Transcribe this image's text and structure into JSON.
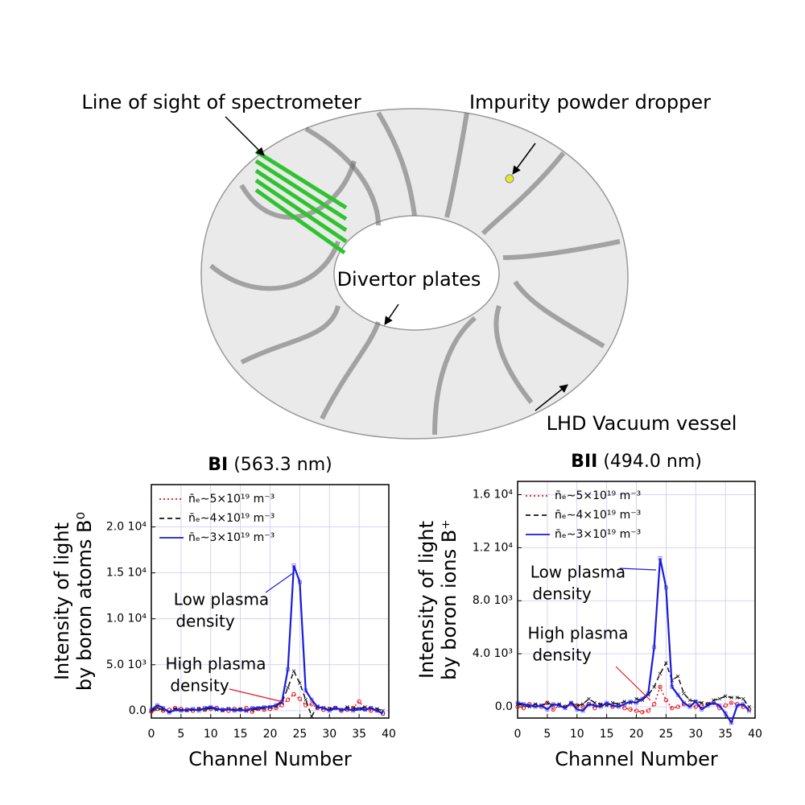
{
  "diagram": {
    "labels": [
      "Line of sight of spectrometer",
      "Impurity powder dropper",
      "Divertor plates",
      "LHD Vacuum vessel"
    ]
  },
  "chart_data": [
    {
      "type": "line",
      "title": {
        "bold": "BI",
        "text": "(563.3 nm)"
      },
      "y_label": [
        "Intensity of light",
        "by boron atoms B⁰"
      ],
      "x_label": "Channel Number",
      "x": [
        0,
        1,
        2,
        3,
        4,
        5,
        6,
        7,
        8,
        9,
        10,
        11,
        12,
        13,
        14,
        15,
        16,
        17,
        18,
        19,
        20,
        21,
        22,
        23,
        24,
        25,
        26,
        27,
        28,
        29,
        30,
        31,
        32,
        33,
        34,
        35,
        36,
        37,
        38,
        39
      ],
      "xlim": [
        0,
        40
      ],
      "xticks": [
        0,
        5,
        10,
        15,
        20,
        25,
        30,
        35,
        40
      ],
      "ylim": [
        -800,
        24600
      ],
      "yticks": [
        {
          "value": 0,
          "label": "0.0"
        },
        {
          "value": 5000,
          "label": "5.0 10³"
        },
        {
          "value": 10000,
          "label": "1.0 10⁴"
        },
        {
          "value": 15000,
          "label": "1.5 10⁴"
        },
        {
          "value": 20000,
          "label": "2.0 10⁴"
        }
      ],
      "grid": true,
      "legend": "upper left",
      "series": [
        {
          "name": "n̄ₑ∼5×10¹⁹ m⁻³",
          "color": "#e8141b",
          "marker": "circle",
          "dash": "dot",
          "values": [
            -100,
            200,
            0,
            100,
            300,
            200,
            100,
            0,
            200,
            100,
            200,
            300,
            100,
            0,
            200,
            100,
            300,
            -100,
            200,
            100,
            200,
            300,
            600,
            1200,
            1800,
            1300,
            600,
            700,
            300,
            100,
            200,
            300,
            0,
            100,
            300,
            1000,
            200,
            0,
            100,
            -300
          ]
        },
        {
          "name": "n̄ₑ∼4×10¹⁹ m⁻³",
          "color": "#111111",
          "marker": "x",
          "dash": "dash",
          "values": [
            0,
            300,
            100,
            -100,
            200,
            100,
            0,
            100,
            200,
            100,
            300,
            100,
            0,
            200,
            100,
            200,
            0,
            100,
            200,
            300,
            400,
            500,
            900,
            2500,
            4300,
            3000,
            1200,
            -600,
            500,
            300,
            200,
            300,
            100,
            400,
            300,
            200,
            400,
            300,
            200,
            0
          ]
        },
        {
          "name": "n̄ₑ∼3×10¹⁹ m⁻³",
          "color": "#1a1adc",
          "marker": "square",
          "dash": "solid",
          "values": [
            100,
            600,
            300,
            -200,
            100,
            0,
            100,
            200,
            0,
            300,
            400,
            200,
            100,
            200,
            0,
            100,
            0,
            300,
            300,
            400,
            400,
            600,
            1000,
            4500,
            15800,
            14000,
            2200,
            1200,
            400,
            300,
            0,
            300,
            100,
            200,
            0,
            200,
            100,
            300,
            0,
            -300
          ]
        }
      ],
      "annotations": [
        {
          "text": [
            "Low plasma",
            "density"
          ],
          "color": "#1a1adc"
        },
        {
          "text": [
            "High plasma",
            "density"
          ],
          "color": "#e8141b"
        }
      ]
    },
    {
      "type": "line",
      "title": {
        "bold": "BII",
        "text": "(494.0 nm)"
      },
      "y_label": [
        "Intensity of light",
        "by boron ions B⁺"
      ],
      "x_label": "Channel Number",
      "x": [
        0,
        1,
        2,
        3,
        4,
        5,
        6,
        7,
        8,
        9,
        10,
        11,
        12,
        13,
        14,
        15,
        16,
        17,
        18,
        19,
        20,
        21,
        22,
        23,
        24,
        25,
        26,
        27,
        28,
        29,
        30,
        31,
        32,
        33,
        34,
        35,
        36,
        37,
        38,
        39
      ],
      "xlim": [
        0,
        40
      ],
      "xticks": [
        0,
        5,
        10,
        15,
        20,
        25,
        30,
        35,
        40
      ],
      "ylim": [
        -850,
        17000
      ],
      "yticks": [
        {
          "value": 0,
          "label": "0.0"
        },
        {
          "value": 4000,
          "label": "4.0 10³"
        },
        {
          "value": 8000,
          "label": "8.0 10³"
        },
        {
          "value": 12000,
          "label": "1.2 10⁴"
        },
        {
          "value": 16000,
          "label": "1.6 10⁴"
        }
      ],
      "grid": true,
      "legend": "upper left",
      "series": [
        {
          "name": "n̄ₑ∼5×10¹⁹ m⁻³",
          "color": "#e8141b",
          "marker": "circle",
          "dash": "dot",
          "values": [
            0,
            -100,
            200,
            100,
            0,
            300,
            -200,
            100,
            0,
            200,
            100,
            0,
            200,
            -100,
            100,
            200,
            0,
            100,
            -100,
            -200,
            -300,
            -400,
            -300,
            200,
            1500,
            500,
            -100,
            0,
            200,
            100,
            0,
            100,
            200,
            300,
            -100,
            100,
            300,
            200,
            0,
            -200
          ]
        },
        {
          "name": "n̄ₑ∼4×10¹⁹ m⁻³",
          "color": "#111111",
          "marker": "x",
          "dash": "dash",
          "values": [
            200,
            100,
            0,
            200,
            100,
            300,
            100,
            200,
            0,
            300,
            100,
            200,
            600,
            300,
            200,
            100,
            300,
            200,
            400,
            300,
            600,
            500,
            900,
            1500,
            2500,
            3300,
            2000,
            2300,
            1000,
            500,
            400,
            300,
            200,
            500,
            600,
            800,
            700,
            700,
            600,
            0
          ]
        },
        {
          "name": "n̄ₑ∼3×10¹⁹ m⁻³",
          "color": "#1a1adc",
          "marker": "square",
          "dash": "solid",
          "values": [
            300,
            200,
            100,
            0,
            100,
            -200,
            200,
            100,
            -100,
            300,
            -200,
            -300,
            200,
            100,
            0,
            300,
            100,
            0,
            200,
            400,
            300,
            600,
            1000,
            4500,
            11200,
            9000,
            1500,
            900,
            300,
            0,
            400,
            -200,
            100,
            300,
            100,
            -500,
            -1200,
            100,
            200,
            -300
          ]
        }
      ],
      "annotations": [
        {
          "text": [
            "Low plasma",
            "density"
          ],
          "color": "#1a1adc"
        },
        {
          "text": [
            "High plasma",
            "density"
          ],
          "color": "#e8141b"
        }
      ]
    }
  ]
}
